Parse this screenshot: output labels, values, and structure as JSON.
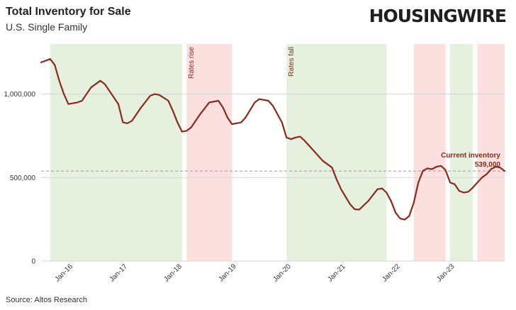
{
  "header": {
    "title": "Total Inventory for Sale",
    "subtitle": "U.S. Single Family",
    "logo": "HOUSINGWIRE"
  },
  "footer": {
    "source": "Source: Altos Research"
  },
  "chart_data": {
    "type": "line",
    "title": "Total Inventory for Sale",
    "subtitle": "U.S. Single Family",
    "xlabel": "",
    "ylabel": "",
    "ylim": [
      0,
      1300000
    ],
    "y_ticks": [
      {
        "value": 0,
        "label": "0"
      },
      {
        "value": 500000,
        "label": "500,000"
      },
      {
        "value": 1000000,
        "label": "1,000,000"
      }
    ],
    "x_ticks": [
      {
        "date": "2016-01",
        "label": "Jan-16"
      },
      {
        "date": "2017-01",
        "label": "Jan-17"
      },
      {
        "date": "2018-01",
        "label": "Jan-18"
      },
      {
        "date": "2019-01",
        "label": "Jan-19"
      },
      {
        "date": "2020-01",
        "label": "Jan-20"
      },
      {
        "date": "2021-01",
        "label": "Jan-21"
      },
      {
        "date": "2022-01",
        "label": "Jan-22"
      },
      {
        "date": "2023-01",
        "label": "Jan-23"
      }
    ],
    "xlim": [
      "2015-06",
      "2023-12"
    ],
    "grid": "horizontal",
    "bands": [
      {
        "start": "2015-08",
        "end": "2018-01",
        "color": "#e5f0df",
        "label": ""
      },
      {
        "start": "2018-02",
        "end": "2018-12",
        "color": "#fce0e0",
        "label": "Rates rise"
      },
      {
        "start": "2019-12",
        "end": "2021-10",
        "color": "#e5f0df",
        "label": "Rates fall"
      },
      {
        "start": "2022-04",
        "end": "2022-11",
        "color": "#fce0e0",
        "label": ""
      },
      {
        "start": "2022-12",
        "end": "2023-05",
        "color": "#e5f0df",
        "label": ""
      },
      {
        "start": "2023-06",
        "end": "2023-12",
        "color": "#fce0e0",
        "label": ""
      }
    ],
    "reference_line": {
      "value": 539000,
      "style": "dashed"
    },
    "annotation": {
      "label": "Current inventory",
      "value_label": "539,000",
      "date": "2023-12",
      "value": 539000
    },
    "series": [
      {
        "color": "#8a2a1c",
        "points": [
          [
            "2015-06",
            1190000
          ],
          [
            "2015-08",
            1210000
          ],
          [
            "2015-09",
            1175000
          ],
          [
            "2015-10",
            1080000
          ],
          [
            "2015-11",
            1000000
          ],
          [
            "2015-12",
            940000
          ],
          [
            "2016-02",
            950000
          ],
          [
            "2016-03",
            960000
          ],
          [
            "2016-05",
            1040000
          ],
          [
            "2016-07",
            1080000
          ],
          [
            "2016-08",
            1060000
          ],
          [
            "2016-09",
            1020000
          ],
          [
            "2016-11",
            940000
          ],
          [
            "2016-12",
            830000
          ],
          [
            "2017-01",
            825000
          ],
          [
            "2017-02",
            840000
          ],
          [
            "2017-04",
            920000
          ],
          [
            "2017-06",
            990000
          ],
          [
            "2017-07",
            1000000
          ],
          [
            "2017-08",
            995000
          ],
          [
            "2017-10",
            960000
          ],
          [
            "2017-11",
            900000
          ],
          [
            "2017-12",
            830000
          ],
          [
            "2018-01",
            775000
          ],
          [
            "2018-02",
            780000
          ],
          [
            "2018-03",
            800000
          ],
          [
            "2018-05",
            880000
          ],
          [
            "2018-07",
            950000
          ],
          [
            "2018-09",
            960000
          ],
          [
            "2018-10",
            920000
          ],
          [
            "2018-11",
            860000
          ],
          [
            "2018-12",
            820000
          ],
          [
            "2019-02",
            830000
          ],
          [
            "2019-03",
            860000
          ],
          [
            "2019-05",
            950000
          ],
          [
            "2019-06",
            970000
          ],
          [
            "2019-08",
            960000
          ],
          [
            "2019-09",
            930000
          ],
          [
            "2019-11",
            830000
          ],
          [
            "2019-12",
            740000
          ],
          [
            "2020-01",
            730000
          ],
          [
            "2020-02",
            740000
          ],
          [
            "2020-03",
            745000
          ],
          [
            "2020-04",
            720000
          ],
          [
            "2020-06",
            660000
          ],
          [
            "2020-08",
            600000
          ],
          [
            "2020-10",
            560000
          ],
          [
            "2020-11",
            490000
          ],
          [
            "2020-12",
            430000
          ],
          [
            "2021-02",
            340000
          ],
          [
            "2021-03",
            310000
          ],
          [
            "2021-04",
            308000
          ],
          [
            "2021-06",
            360000
          ],
          [
            "2021-08",
            430000
          ],
          [
            "2021-09",
            435000
          ],
          [
            "2021-10",
            410000
          ],
          [
            "2021-11",
            360000
          ],
          [
            "2021-12",
            290000
          ],
          [
            "2022-01",
            255000
          ],
          [
            "2022-02",
            248000
          ],
          [
            "2022-03",
            270000
          ],
          [
            "2022-04",
            350000
          ],
          [
            "2022-05",
            470000
          ],
          [
            "2022-06",
            540000
          ],
          [
            "2022-07",
            555000
          ],
          [
            "2022-08",
            550000
          ],
          [
            "2022-09",
            565000
          ],
          [
            "2022-10",
            570000
          ],
          [
            "2022-11",
            545000
          ],
          [
            "2022-12",
            470000
          ],
          [
            "2023-01",
            460000
          ],
          [
            "2023-02",
            420000
          ],
          [
            "2023-03",
            410000
          ],
          [
            "2023-04",
            415000
          ],
          [
            "2023-05",
            440000
          ],
          [
            "2023-06",
            470000
          ],
          [
            "2023-07",
            500000
          ],
          [
            "2023-08",
            520000
          ],
          [
            "2023-09",
            550000
          ],
          [
            "2023-10",
            565000
          ],
          [
            "2023-11",
            560000
          ],
          [
            "2023-12",
            539000
          ]
        ]
      }
    ]
  }
}
